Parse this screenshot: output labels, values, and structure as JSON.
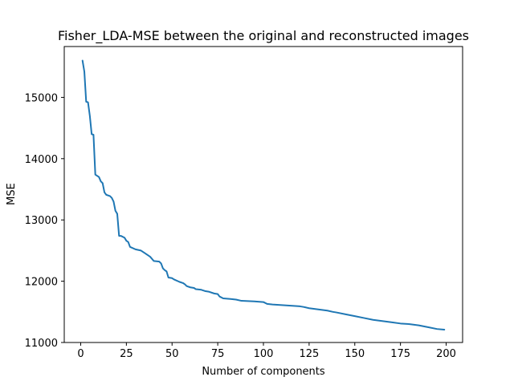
{
  "chart_data": {
    "type": "line",
    "title": "Fisher_LDA-MSE between the original and reconstructed images",
    "xlabel": "Number of components",
    "ylabel": "MSE",
    "xlim": [
      -9,
      209
    ],
    "ylim": [
      11000,
      15830
    ],
    "x_ticks": [
      0,
      25,
      50,
      75,
      100,
      125,
      150,
      175,
      200
    ],
    "y_ticks": [
      11000,
      12000,
      13000,
      14000,
      15000
    ],
    "grid": false,
    "legend": "none",
    "series": [
      {
        "color": "#1f77b4",
        "x": [
          1,
          2,
          3,
          4,
          5,
          6,
          7,
          8,
          10,
          11,
          12,
          13,
          14,
          16,
          17,
          18,
          19,
          20,
          21,
          22,
          24,
          25,
          26,
          27,
          30,
          33,
          35,
          38,
          40,
          43,
          44,
          45,
          46,
          47,
          48,
          50,
          51,
          54,
          56,
          57,
          58,
          60,
          62,
          63,
          66,
          68,
          70,
          73,
          75,
          76,
          78,
          82,
          85,
          88,
          95,
          100,
          102,
          105,
          110,
          115,
          120,
          122,
          125,
          130,
          135,
          138,
          140,
          145,
          150,
          155,
          160,
          165,
          170,
          175,
          180,
          185,
          190,
          195,
          199
        ],
        "values": [
          15600,
          15420,
          14930,
          14920,
          14700,
          14400,
          14390,
          13740,
          13700,
          13630,
          13600,
          13450,
          13410,
          13390,
          13360,
          13300,
          13150,
          13100,
          12740,
          12740,
          12710,
          12660,
          12640,
          12560,
          12520,
          12500,
          12460,
          12400,
          12330,
          12320,
          12290,
          12210,
          12180,
          12160,
          12060,
          12050,
          12030,
          11990,
          11970,
          11950,
          11920,
          11900,
          11890,
          11870,
          11860,
          11840,
          11830,
          11800,
          11790,
          11750,
          11720,
          11710,
          11700,
          11680,
          11670,
          11660,
          11630,
          11620,
          11610,
          11600,
          11590,
          11580,
          11560,
          11540,
          11520,
          11500,
          11490,
          11460,
          11430,
          11400,
          11370,
          11350,
          11330,
          11310,
          11300,
          11280,
          11250,
          11220,
          11210
        ]
      }
    ]
  }
}
